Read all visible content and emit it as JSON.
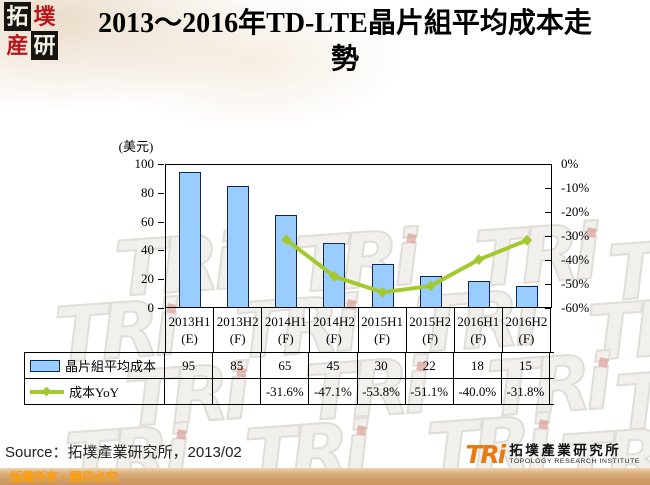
{
  "header": {
    "title_lines": [
      "2013～2016年TD-LTE晶片組平均成本走",
      "勢"
    ],
    "seal": [
      "拓",
      "墣",
      "産",
      "研"
    ]
  },
  "chart_data": {
    "type": "bar+line",
    "title": "2013～2016年TD-LTE晶片組平均成本走勢",
    "categories": [
      {
        "period": "2013H1",
        "tag": "(E)"
      },
      {
        "period": "2013H2",
        "tag": "(F)"
      },
      {
        "period": "2014H1",
        "tag": "(F)"
      },
      {
        "period": "2014H2",
        "tag": "(F)"
      },
      {
        "period": "2015H1",
        "tag": "(F)"
      },
      {
        "period": "2015H2",
        "tag": "(F)"
      },
      {
        "period": "2016H1",
        "tag": "(F)"
      },
      {
        "period": "2016H2",
        "tag": "(F)"
      }
    ],
    "left_axis": {
      "title": "(美元)",
      "ticks": [
        "100",
        "80",
        "60",
        "40",
        "20",
        "0"
      ],
      "max": 100,
      "min": 0
    },
    "right_axis": {
      "ticks": [
        "0%",
        "-10%",
        "-20%",
        "-30%",
        "-40%",
        "-50%",
        "-60%"
      ],
      "max": 0,
      "min": -60
    },
    "series": [
      {
        "name": "晶片組平均成本",
        "type": "bar",
        "color": "#99CCFF",
        "border_color": "#0D2A52",
        "values": [
          95,
          85,
          65,
          45,
          30,
          22,
          18,
          15
        ],
        "value_labels": [
          "95",
          "85",
          "65",
          "45",
          "30",
          "22",
          "18",
          "15"
        ]
      },
      {
        "name": "成本YoY",
        "type": "line",
        "color": "#A3C92E",
        "values": [
          null,
          null,
          -31.6,
          -47.1,
          -53.8,
          -51.1,
          -40.0,
          -31.8
        ],
        "value_labels": [
          "",
          "",
          "-31.6%",
          "-47.1%",
          "-53.8%",
          "-51.1%",
          "-40.0%",
          "-31.8%"
        ]
      }
    ],
    "layout": {
      "gridlines": false,
      "data_table_attached": true,
      "legend_position": "table-left"
    }
  },
  "watermark": {
    "text": "TRi"
  },
  "footer": {
    "source": "Source：拓墣產業研究所，2013/02",
    "copyright": "版權所有‧翻印必究",
    "logo": {
      "tri": "TRi",
      "name_cn": "拓墣產業研究所",
      "name_en": "TOPOLOGY RESEARCH INSTITUTE",
      "accent_color": "#E87A10"
    }
  }
}
